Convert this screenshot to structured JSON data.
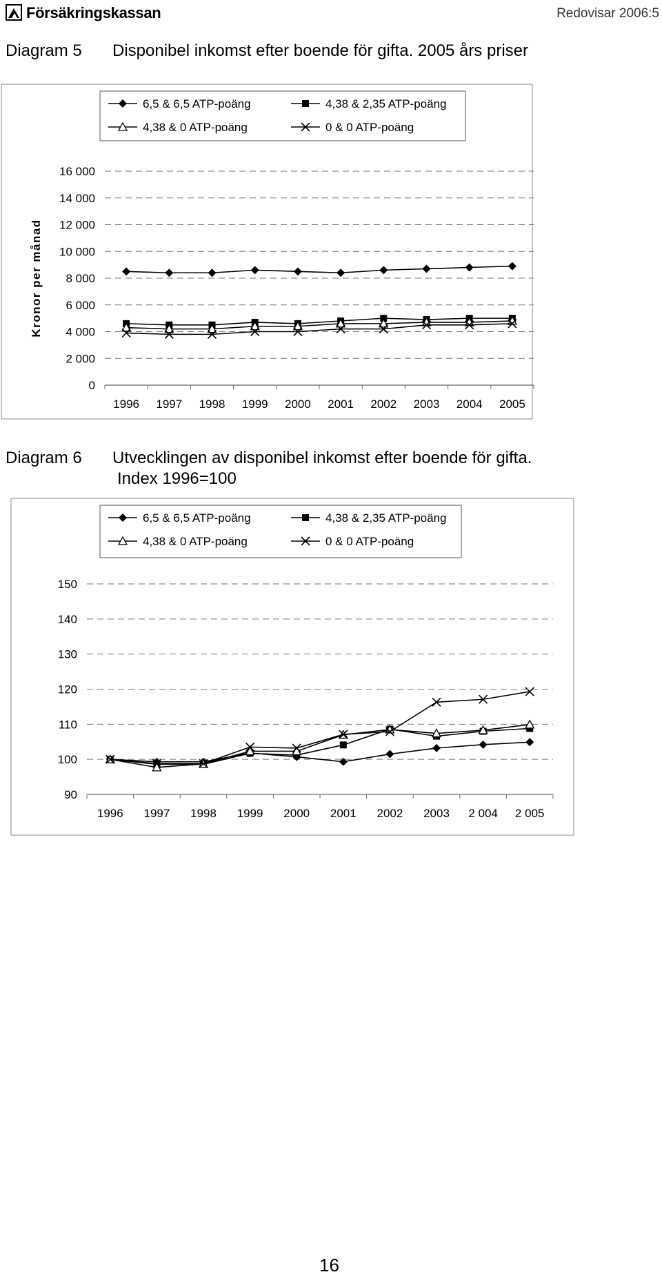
{
  "header": {
    "logo_text": "Försäkringskassan",
    "report_label": "Redovisar 2006:5"
  },
  "diagram5": {
    "label": "Diagram 5",
    "title": "Disponibel inkomst efter boende för gifta. 2005 års priser"
  },
  "diagram6": {
    "label": "Diagram 6",
    "title_line1": "Utvecklingen av disponibel inkomst efter boende för gifta.",
    "title_line2": "Index 1996=100"
  },
  "page_number": "16",
  "chart_data": [
    {
      "type": "line",
      "title": "Disponibel inkomst efter boende för gifta. 2005 års priser",
      "xlabel": "",
      "ylabel": "Kronor per månad",
      "categories": [
        "1996",
        "1997",
        "1998",
        "1999",
        "2000",
        "2001",
        "2002",
        "2003",
        "2004",
        "2005"
      ],
      "ylim": [
        0,
        16000
      ],
      "yticks": [
        0,
        2000,
        4000,
        6000,
        8000,
        10000,
        12000,
        14000,
        16000
      ],
      "ytick_labels": [
        "0",
        "2 000",
        "4 000",
        "6 000",
        "8 000",
        "10 000",
        "12 000",
        "14 000",
        "16 000"
      ],
      "grid": "dashed horizontal",
      "legend_position": "top",
      "series": [
        {
          "name": "6,5 & 6,5 ATP-poäng",
          "marker": "diamond",
          "values": [
            8500,
            8400,
            8400,
            8600,
            8500,
            8400,
            8600,
            8700,
            8800,
            8900
          ]
        },
        {
          "name": "4,38 & 2,35 ATP-poäng",
          "marker": "square",
          "values": [
            4600,
            4500,
            4500,
            4700,
            4600,
            4800,
            5000,
            4900,
            5000,
            5000
          ]
        },
        {
          "name": "4,38 & 0 ATP-poäng",
          "marker": "triangle",
          "values": [
            4300,
            4200,
            4200,
            4400,
            4400,
            4600,
            4600,
            4700,
            4700,
            4800
          ]
        },
        {
          "name": "0 & 0 ATP-poäng",
          "marker": "x",
          "values": [
            3900,
            3800,
            3800,
            4000,
            4000,
            4200,
            4200,
            4500,
            4500,
            4600
          ]
        }
      ]
    },
    {
      "type": "line",
      "title": "Utvecklingen av disponibel inkomst efter boende för gifta. Index 1996=100",
      "xlabel": "",
      "ylabel": "",
      "categories": [
        "1996",
        "1997",
        "1998",
        "1999",
        "2000",
        "2001",
        "2002",
        "2003",
        "2 004",
        "2 005"
      ],
      "ylim": [
        90,
        150
      ],
      "yticks": [
        90,
        100,
        110,
        120,
        130,
        140,
        150
      ],
      "ytick_labels": [
        "90",
        "100",
        "110",
        "120",
        "130",
        "140",
        "150"
      ],
      "grid": "dashed horizontal",
      "legend_position": "top",
      "series": [
        {
          "name": "6,5 & 6,5 ATP-poäng",
          "marker": "diamond",
          "values": [
            100,
            99.3,
            99.3,
            101.8,
            100.7,
            99.3,
            101.5,
            103.2,
            104.2,
            104.9
          ]
        },
        {
          "name": "4,38 & 2,35 ATP-poäng",
          "marker": "square",
          "values": [
            100,
            98.6,
            98.6,
            101.7,
            101.2,
            104.1,
            108.6,
            106.6,
            108.0,
            108.8
          ]
        },
        {
          "name": "4,38 & 0 ATP-poäng",
          "marker": "triangle",
          "values": [
            100,
            97.7,
            98.7,
            102.3,
            102.3,
            107.0,
            108.5,
            107.4,
            108.3,
            109.9
          ]
        },
        {
          "name": "0 & 0 ATP-poäng",
          "marker": "x",
          "values": [
            100,
            98.8,
            98.8,
            103.5,
            103.2,
            107.1,
            107.9,
            116.3,
            117.1,
            119.3
          ]
        }
      ]
    }
  ]
}
